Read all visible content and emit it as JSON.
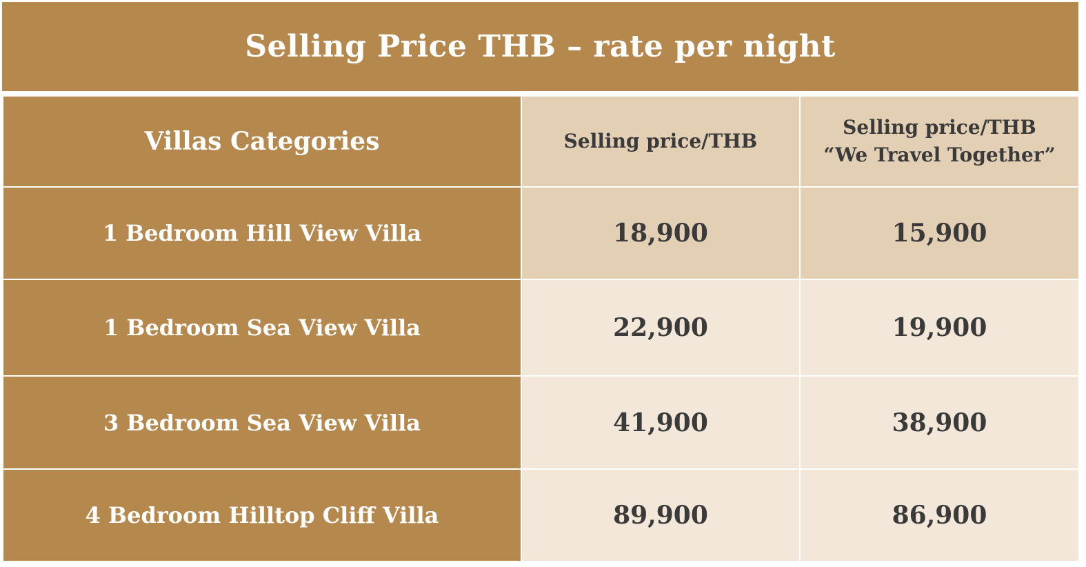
{
  "title": "Selling Price THB – rate per night",
  "table": {
    "headers": {
      "category": "Villas Categories",
      "price": "Selling price/THB",
      "wtt_line1": "Selling price/THB",
      "wtt_line2": "“We Travel Together”"
    },
    "rows": [
      {
        "category": "1 Bedroom Hill View Villa",
        "price": "18,900",
        "wtt_price": "15,900"
      },
      {
        "category": "1 Bedroom Sea View Villa",
        "price": "22,900",
        "wtt_price": "19,900"
      },
      {
        "category": "3 Bedroom Sea View Villa",
        "price": "41,900",
        "wtt_price": "38,900"
      },
      {
        "category": "4 Bedroom Hilltop Cliff Villa",
        "price": "89,900",
        "wtt_price": "86,900"
      }
    ]
  },
  "colors": {
    "category_bg": "#b5894e",
    "header_price_bg": "#e2cfb4",
    "row_light_bg": "#f2e7d8",
    "text_dark": "#3a3a3a"
  }
}
